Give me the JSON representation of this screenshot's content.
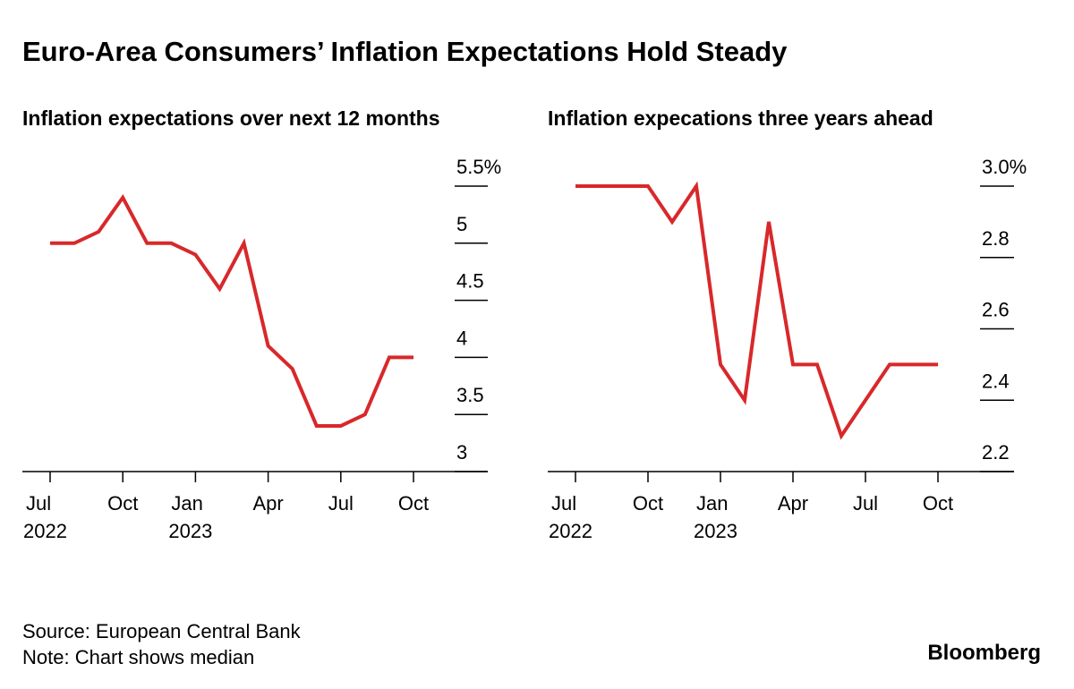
{
  "title": "Euro-Area Consumers’ Inflation Expectations Hold Steady",
  "source": "Source: European Central Bank",
  "note": "Note: Chart shows median",
  "brand": "Bloomberg",
  "chart_data": [
    {
      "type": "line",
      "title": "Inflation expectations over next 12 months",
      "categories": [
        "Jul 2022",
        null,
        null,
        "Oct",
        null,
        null,
        "Jan 2023",
        null,
        null,
        "Apr",
        null,
        null,
        "Jul",
        null,
        null,
        "Oct"
      ],
      "values": [
        5.0,
        5.0,
        5.1,
        5.4,
        5.0,
        5.0,
        4.9,
        4.6,
        5.0,
        4.1,
        3.9,
        3.4,
        3.4,
        3.5,
        4.0,
        4.0
      ],
      "color": "#d8282b",
      "ylim": [
        3.0,
        5.5
      ],
      "yticks": [
        3.0,
        3.5,
        4.0,
        4.5,
        5.0,
        {
          "value": 5.5,
          "label": "5.5%"
        }
      ]
    },
    {
      "type": "line",
      "title": "Inflation expecations three years ahead",
      "categories": [
        "Jul 2022",
        null,
        null,
        "Oct",
        null,
        null,
        "Jan 2023",
        null,
        null,
        "Apr",
        null,
        null,
        "Jul",
        null,
        null,
        "Oct"
      ],
      "values": [
        3.0,
        3.0,
        3.0,
        3.0,
        2.9,
        3.0,
        2.5,
        2.4,
        2.9,
        2.5,
        2.5,
        2.3,
        2.4,
        2.5,
        2.5,
        2.5
      ],
      "color": "#d8282b",
      "ylim": [
        2.2,
        3.0
      ],
      "yticks": [
        2.2,
        2.4,
        2.6,
        2.8,
        {
          "value": 3.0,
          "label": "3.0%"
        }
      ]
    }
  ]
}
